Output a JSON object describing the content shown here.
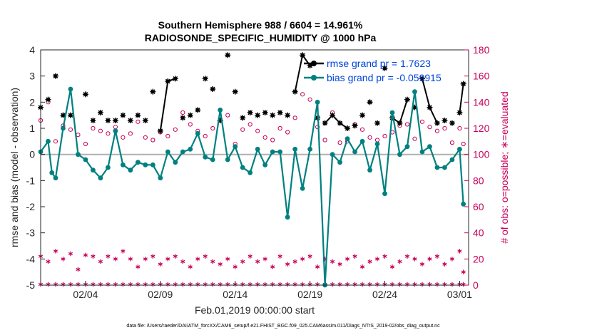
{
  "chart_data": {
    "type": "line",
    "title_line1": "Southern Hemisphere 988 / 6604 = 14.961%",
    "title_line2": "RADIOSONDE_SPECIFIC_HUMIDITY @ 1000 hPa",
    "ylabel_left": "rmse and bias (model - observation)",
    "ylabel_right": "# of obs: o=possible; ∗=evaluated",
    "xlabel": "Feb.01,2019 00:00:00 start",
    "footer": "data file: /Users/raeder/DAI/ATM_forcXX/CAM6_setup/f.e21.FHIST_BGC.f09_025.CAM6assim.011/Diags_NTrS_2019-02/obs_diag_output.nc",
    "ylim_left": [
      -5,
      4
    ],
    "ylim_right": [
      0,
      180
    ],
    "xlim": [
      0,
      28.6
    ],
    "yticks_left": [
      "-5",
      "-4",
      "-3",
      "-2",
      "-1",
      "0",
      "1",
      "2",
      "3",
      "4"
    ],
    "yticks_right": [
      "0",
      "20",
      "40",
      "60",
      "80",
      "100",
      "120",
      "140",
      "160",
      "180"
    ],
    "xticks": [
      {
        "x": 3,
        "label": "02/04"
      },
      {
        "x": 8,
        "label": "02/09"
      },
      {
        "x": 13,
        "label": "02/14"
      },
      {
        "x": 18,
        "label": "02/19"
      },
      {
        "x": 23,
        "label": "02/24"
      },
      {
        "x": 28,
        "label": "03/01"
      }
    ],
    "legend": [
      {
        "name": "rmse",
        "label": "rmse grand pr = 1.7623",
        "color": "#000000"
      },
      {
        "name": "bias",
        "label": "bias grand pr = -0.059915",
        "color": "#008080"
      }
    ],
    "colors": {
      "rmse": "#000000",
      "bias": "#008080",
      "count": "#c8005a",
      "zero": "#b0b0b0"
    },
    "series": [
      {
        "name": "rmse",
        "x": [
          0,
          0.5,
          1,
          1.5,
          2,
          2.5,
          3,
          3.5,
          4,
          4.5,
          5,
          5.5,
          6,
          6.5,
          7,
          7.5,
          8,
          8.5,
          9,
          9.5,
          10,
          10.5,
          11,
          11.5,
          12,
          12.5,
          13,
          13.5,
          14,
          14.5,
          15,
          15.5,
          16,
          16.5,
          17,
          17.5,
          18,
          18.5,
          19,
          19.5,
          20,
          20.5,
          21,
          21.5,
          22,
          22.5,
          23,
          23.5,
          24,
          24.5,
          25,
          25.5,
          26,
          26.5,
          27,
          27.5,
          28,
          28.25
        ],
        "values": [
          1.8,
          2.1,
          3.0,
          1.5,
          1.5,
          null,
          2.3,
          1.3,
          1.6,
          1.3,
          1.3,
          1.5,
          1.3,
          1.5,
          1.3,
          2.4,
          0.9,
          2.8,
          2.9,
          1.4,
          1.5,
          1.7,
          2.9,
          2.5,
          1.3,
          3.8,
          2.4,
          1.4,
          1.6,
          1.5,
          1.6,
          1.5,
          1.6,
          1.5,
          2.4,
          3.8,
          3.4,
          1.4,
          1.2,
          1.5,
          1.2,
          1.0,
          1.1,
          1.5,
          2.0,
          1.2,
          3.3,
          1.4,
          1.2,
          2.1,
          1.8,
          2.9,
          1.8,
          1.2,
          1.3,
          1.2,
          1.6,
          2.7
        ],
        "connected_runs": [
          [
            16,
            18
          ],
          [
            34,
            36
          ],
          [
            38,
            41
          ],
          [
            47,
            49
          ],
          [
            51,
            53
          ],
          [
            56,
            57
          ]
        ]
      },
      {
        "name": "bias",
        "x": [
          0,
          0.5,
          0.75,
          1,
          1.5,
          2,
          2.5,
          3,
          3.5,
          4,
          4.5,
          5,
          5.5,
          6,
          6.5,
          7,
          7.5,
          8,
          8.5,
          9,
          9.5,
          10,
          10.5,
          11,
          11.5,
          12,
          12.5,
          13,
          13.5,
          14,
          14.5,
          15,
          15.5,
          16,
          16.5,
          17,
          17.5,
          18,
          18.5,
          19,
          19.5,
          20,
          20.5,
          21,
          21.5,
          22,
          22.5,
          23,
          23.5,
          24,
          24.5,
          25,
          25.5,
          26,
          26.5,
          27,
          27.5,
          28,
          28.25
        ],
        "values": [
          0.1,
          0.5,
          -0.7,
          -0.9,
          1.0,
          2.5,
          0.0,
          -0.2,
          -0.6,
          -0.9,
          -0.5,
          0.9,
          -0.4,
          -0.6,
          -0.3,
          -0.4,
          -0.4,
          -0.9,
          0.1,
          -0.3,
          0.1,
          0.2,
          0.8,
          -0.1,
          -0.2,
          1.7,
          -0.2,
          0.3,
          -0.5,
          -0.7,
          0.2,
          -0.4,
          0.1,
          0.1,
          -2.4,
          0.2,
          -1.3,
          0.2,
          2.0,
          -5.0,
          0.0,
          -0.3,
          0.6,
          0.1,
          0.5,
          -0.6,
          0.4,
          -1.5,
          1.6,
          0.0,
          0.3,
          2.4,
          0.1,
          0.3,
          -0.5,
          -0.5,
          -0.2,
          0.2,
          -1.9
        ]
      },
      {
        "name": "obs_possible",
        "marker": "circle",
        "x": [
          0,
          0.5,
          1,
          1.5,
          2,
          2.5,
          3,
          3.5,
          4,
          4.5,
          5,
          5.5,
          6,
          6.5,
          7,
          7.5,
          8,
          8.5,
          9,
          9.5,
          10,
          10.5,
          11,
          11.5,
          12,
          12.5,
          13,
          13.5,
          14,
          14.5,
          15,
          15.5,
          16,
          16.5,
          17,
          17.5,
          18,
          18.5,
          19,
          19.5,
          20,
          20.5,
          21,
          21.5,
          22,
          22.5,
          23,
          23.5,
          24,
          24.5,
          25,
          25.5,
          26,
          26.5,
          27,
          27.5,
          28,
          28.25
        ],
        "values": [
          126,
          140,
          110,
          122,
          119,
          115,
          108,
          120,
          118,
          116,
          121,
          113,
          116,
          125,
          113,
          111,
          117,
          114,
          119,
          132,
          123,
          118,
          114,
          120,
          126,
          130,
          108,
          119,
          123,
          118,
          113,
          111,
          120,
          117,
          128,
          146,
          142,
          121,
          111,
          132,
          109,
          110,
          123,
          119,
          113,
          111,
          114,
          117,
          122,
          123,
          112,
          125,
          121,
          118,
          120,
          109,
          120,
          108
        ]
      },
      {
        "name": "obs_evaluated",
        "marker": "asterisk",
        "x": [
          0,
          0.5,
          1,
          1.5,
          2,
          2.5,
          3,
          3.5,
          4,
          4.5,
          5,
          5.5,
          6,
          6.5,
          7,
          7.5,
          8,
          8.5,
          9,
          9.5,
          10,
          10.5,
          11,
          11.5,
          12,
          12.5,
          13,
          13.5,
          14,
          14.5,
          15,
          15.5,
          16,
          16.5,
          17,
          17.5,
          18,
          18.5,
          19,
          19.5,
          20,
          20.5,
          21,
          21.5,
          22,
          22.5,
          23,
          23.5,
          24,
          24.5,
          25,
          25.5,
          26,
          26.5,
          27,
          27.5,
          28,
          28.25
        ],
        "values": [
          22,
          18,
          26,
          20,
          24,
          12,
          23,
          22,
          18,
          22,
          20,
          26,
          20,
          14,
          20,
          22,
          16,
          20,
          22,
          18,
          14,
          20,
          22,
          18,
          16,
          20,
          14,
          18,
          22,
          18,
          20,
          14,
          22,
          16,
          18,
          20,
          22,
          14,
          20,
          18,
          16,
          20,
          22,
          14,
          18,
          20,
          22,
          14,
          18,
          22,
          20,
          16,
          20,
          22,
          16,
          20,
          26,
          10
        ]
      },
      {
        "name": "obs_zero_line",
        "marker": "asterisk",
        "x": [
          0,
          0.5,
          1,
          1.5,
          2,
          2.5,
          3,
          3.5,
          4,
          4.5,
          5,
          5.5,
          6,
          6.5,
          7,
          7.5,
          8,
          8.5,
          9,
          9.5,
          10,
          10.5,
          11,
          11.5,
          12,
          12.5,
          13,
          13.5,
          14,
          14.5,
          15,
          15.5,
          16,
          16.5,
          17,
          17.5,
          18,
          18.5,
          19,
          19.5,
          20,
          20.5,
          21,
          21.5,
          22,
          22.5,
          23,
          23.5,
          24,
          24.5,
          25,
          25.5,
          26,
          26.5,
          27,
          27.5,
          28,
          28.25
        ],
        "values": [
          0,
          0,
          0,
          0,
          0,
          0,
          0,
          0,
          0,
          0,
          0,
          0,
          0,
          0,
          0,
          0,
          0,
          0,
          0,
          0,
          0,
          0,
          0,
          0,
          0,
          0,
          0,
          0,
          0,
          0,
          0,
          0,
          0,
          0,
          0,
          0,
          0,
          0,
          0,
          0,
          0,
          0,
          0,
          0,
          0,
          0,
          0,
          0,
          0,
          0,
          0,
          0,
          0,
          0,
          0,
          0,
          0,
          0
        ]
      }
    ]
  }
}
